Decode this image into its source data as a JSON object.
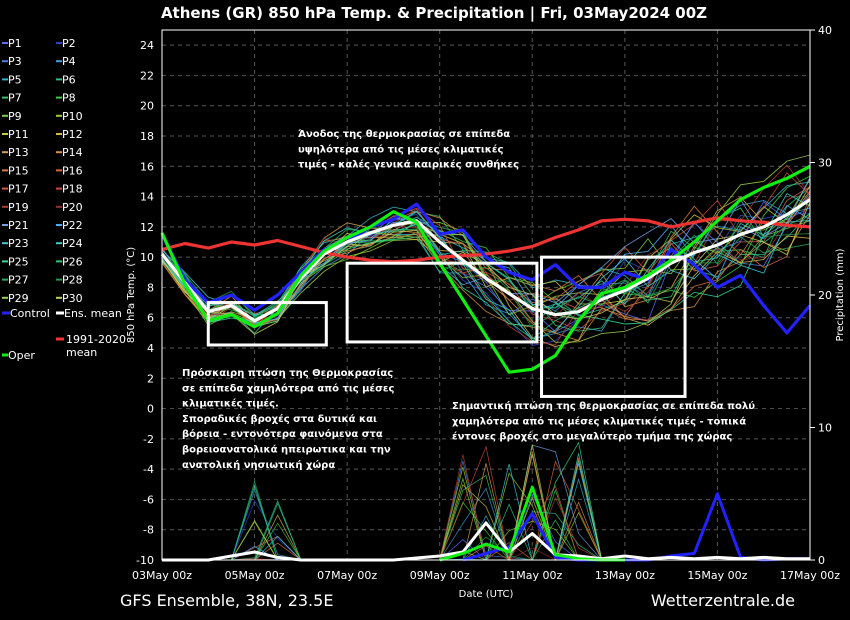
{
  "title": "Athens  (GR)  850 hPa Temp. & Precipitation | Fri, 03May2024 00Z",
  "footer_left": "GFS Ensemble, 38N, 23.5E",
  "footer_right": "Wetterzentrale.de",
  "chart_data": {
    "type": "line",
    "xlabel": "Date (UTC)",
    "ylabel": "850 hPa Temp. (°C)",
    "y2label": "Precipitation (mm)",
    "ylim": [
      -10,
      25
    ],
    "y2lim": [
      0,
      40
    ],
    "xlim": [
      0,
      14
    ],
    "x_ticks": [
      {
        "x": 0,
        "label": "03May 00z"
      },
      {
        "x": 2,
        "label": "05May 00z"
      },
      {
        "x": 4,
        "label": "07May 00z"
      },
      {
        "x": 6,
        "label": "09May 00z"
      },
      {
        "x": 8,
        "label": "11May 00z"
      },
      {
        "x": 10,
        "label": "13May 00z"
      },
      {
        "x": 12,
        "label": "15May 00z"
      },
      {
        "x": 14,
        "label": "17May 00z"
      }
    ],
    "y_ticks": [
      -10,
      -8,
      -6,
      -4,
      -2,
      0,
      2,
      4,
      6,
      8,
      10,
      12,
      14,
      16,
      18,
      20,
      22,
      24
    ],
    "y2_ticks": [
      0,
      10,
      20,
      30,
      40
    ],
    "grid": true,
    "legend": [
      {
        "label": "P1",
        "color": "#5b6cff"
      },
      {
        "label": "P2",
        "color": "#3344cc"
      },
      {
        "label": "P3",
        "color": "#4f7fe0"
      },
      {
        "label": "P4",
        "color": "#3aa0d8"
      },
      {
        "label": "P5",
        "color": "#2fb6c8"
      },
      {
        "label": "P6",
        "color": "#2fbf8f"
      },
      {
        "label": "P7",
        "color": "#34c06a"
      },
      {
        "label": "P8",
        "color": "#40c940"
      },
      {
        "label": "P9",
        "color": "#7ccf3a"
      },
      {
        "label": "P10",
        "color": "#9acd32"
      },
      {
        "label": "P11",
        "color": "#c8c840"
      },
      {
        "label": "P12",
        "color": "#d4b84a"
      },
      {
        "label": "P13",
        "color": "#d7a04c"
      },
      {
        "label": "P14",
        "color": "#d99045"
      },
      {
        "label": "P15",
        "color": "#d87a3c"
      },
      {
        "label": "P16",
        "color": "#d86838"
      },
      {
        "label": "P17",
        "color": "#d45a40"
      },
      {
        "label": "P18",
        "color": "#c84a3a"
      },
      {
        "label": "P19",
        "color": "#b03a34"
      },
      {
        "label": "P20",
        "color": "#963030"
      },
      {
        "label": "P21",
        "color": "#6ea0e8"
      },
      {
        "label": "P22",
        "color": "#4ab0ff"
      },
      {
        "label": "P23",
        "color": "#40c8d8"
      },
      {
        "label": "P24",
        "color": "#38d0c0"
      },
      {
        "label": "P25",
        "color": "#2edc9a"
      },
      {
        "label": "P26",
        "color": "#28c878"
      },
      {
        "label": "P27",
        "color": "#22b05a"
      },
      {
        "label": "P28",
        "color": "#1e9a48"
      },
      {
        "label": "P29",
        "color": "#9cd04a"
      },
      {
        "label": "P30",
        "color": "#c0d060"
      },
      {
        "label": "Control",
        "color": "#2222ff"
      },
      {
        "label": "Ens. mean",
        "color": "#ffffff"
      },
      {
        "label": "Oper",
        "color": "#11ee11"
      },
      {
        "label": "1991-2020 mean",
        "color": "#ee3333"
      }
    ],
    "series": [
      {
        "name": "1991-2020 mean",
        "color": "#ee3333",
        "role": "climate",
        "x": [
          0,
          0.5,
          1,
          1.5,
          2,
          2.5,
          3,
          3.5,
          4,
          4.5,
          5,
          5.5,
          6,
          6.5,
          7,
          7.5,
          8,
          8.5,
          9,
          9.5,
          10,
          10.5,
          11,
          11.5,
          12,
          12.5,
          13,
          13.5,
          14
        ],
        "values": [
          10.5,
          10.9,
          10.6,
          11.0,
          10.8,
          11.1,
          10.7,
          10.3,
          10.0,
          9.8,
          9.7,
          9.8,
          10.0,
          10.1,
          10.2,
          10.4,
          10.7,
          11.3,
          11.8,
          12.4,
          12.5,
          12.4,
          12.0,
          12.3,
          12.6,
          12.4,
          12.3,
          12.1,
          12.0
        ]
      },
      {
        "name": "Control",
        "color": "#2222ff",
        "role": "control",
        "x": [
          0,
          0.5,
          1,
          1.5,
          2,
          2.5,
          3,
          3.5,
          4,
          4.5,
          5,
          5.5,
          6,
          6.5,
          7,
          7.5,
          8,
          8.5,
          9,
          9.5,
          10,
          10.5,
          11,
          11.5,
          12,
          12.5,
          13,
          13.5,
          14
        ],
        "values": [
          11.5,
          8.5,
          7.0,
          7.5,
          6.5,
          7.5,
          9.0,
          10.5,
          11.0,
          12.0,
          12.5,
          13.5,
          11.5,
          11.8,
          10.0,
          9.0,
          8.5,
          9.5,
          8.0,
          8.0,
          9.0,
          8.5,
          10.5,
          9.5,
          8.0,
          8.8,
          6.8,
          5.0,
          6.8
        ]
      },
      {
        "name": "Ens. mean",
        "color": "#ffffff",
        "role": "mean",
        "x": [
          0,
          0.5,
          1,
          1.5,
          2,
          2.5,
          3,
          3.5,
          4,
          4.5,
          5,
          5.5,
          6,
          6.5,
          7,
          7.5,
          8,
          8.5,
          9,
          9.5,
          10,
          10.5,
          11,
          11.5,
          12,
          12.5,
          13,
          13.5,
          14
        ],
        "values": [
          10.2,
          8.3,
          6.4,
          6.8,
          5.8,
          6.6,
          8.6,
          10.2,
          11.0,
          11.6,
          12.1,
          12.4,
          11.0,
          9.8,
          8.6,
          7.6,
          6.6,
          6.2,
          6.4,
          7.2,
          7.8,
          8.6,
          9.6,
          10.3,
          10.8,
          11.5,
          12.0,
          12.8,
          13.8
        ]
      },
      {
        "name": "Oper",
        "color": "#11ee11",
        "role": "oper",
        "x": [
          0,
          0.5,
          1,
          1.5,
          2,
          2.5,
          3,
          3.5,
          4,
          4.5,
          5,
          5.5,
          6,
          6.5,
          7,
          7.5,
          8,
          8.5,
          9,
          9.5,
          10,
          10.5,
          11,
          11.5,
          12,
          12.5,
          13,
          13.5,
          14
        ],
        "values": [
          11.6,
          8.2,
          5.8,
          6.2,
          5.4,
          6.3,
          8.8,
          10.4,
          11.3,
          12.0,
          13.0,
          12.3,
          9.6,
          7.2,
          4.8,
          2.4,
          2.6,
          3.5,
          5.8,
          7.6,
          8.0,
          8.8,
          9.8,
          11.0,
          12.4,
          13.8,
          14.6,
          15.2,
          16.0
        ]
      },
      {
        "name": "Control precip",
        "color": "#2222ff",
        "role": "precip",
        "x": [
          6.5,
          7,
          7.5,
          8,
          8.5,
          9,
          9.5,
          10,
          10.5,
          11,
          11.5,
          12,
          12.5,
          13,
          13.5,
          14
        ],
        "values": [
          0,
          0.5,
          1.0,
          3.5,
          0.2,
          0,
          0,
          0,
          0,
          0.3,
          0.5,
          5.0,
          0.2,
          0,
          0.1,
          0.1
        ]
      },
      {
        "name": "Ens. mean precip",
        "color": "#ffffff",
        "role": "precip",
        "x": [
          0,
          1,
          2,
          2.5,
          3,
          4,
          5,
          6,
          6.5,
          7,
          7.5,
          8,
          8.5,
          9,
          9.5,
          10,
          10.5,
          11,
          11.5,
          12,
          12.5,
          13,
          13.5,
          14
        ],
        "values": [
          0,
          0,
          0.6,
          0.2,
          0,
          0,
          0,
          0.3,
          0.6,
          2.8,
          0.6,
          2.0,
          0.4,
          0.3,
          0.1,
          0.3,
          0.1,
          0.2,
          0.1,
          0.2,
          0.1,
          0.2,
          0.1,
          0.1
        ]
      },
      {
        "name": "Oper precip",
        "color": "#11ee11",
        "role": "precip",
        "x": [
          6,
          6.5,
          7,
          7.5,
          8,
          8.5,
          9,
          9.5,
          10
        ],
        "values": [
          0,
          0.5,
          1.2,
          0.6,
          5.5,
          0.4,
          0.1,
          0,
          0
        ]
      }
    ],
    "annotations": [
      {
        "lines": [
          "Άνοδος της θερμοκρασίας σε επίπεδα",
          "υψηλότερα από τις μέσες κλιματικές",
          "τιμές - καλές γενικά καιρικές συνθήκες"
        ]
      },
      {
        "lines": [
          "Πρόσκαιρη πτώση της Θερμοκρασίας",
          "σε επίπεδα χαμηλότερα από τις μέσες",
          "κλιματικές τιμές.",
          "Σποραδικές βροχές στα δυτικά και",
          "βόρεια - εντονότερα φαινόμενα στα",
          "βορειοανατολικά ηπειρωτικα και την",
          "ανατολική νησιωτική χώρα"
        ]
      },
      {
        "lines": [
          "Σημαντική πτώση της θερμοκρασίας σε επίπεδα πολύ",
          "χαμηλότερα από τις μέσες κλιματικές τιμές - τοπικά",
          "έντονες βροχές στο μεγαλύτερο τμήμα της χώρας"
        ]
      }
    ]
  }
}
